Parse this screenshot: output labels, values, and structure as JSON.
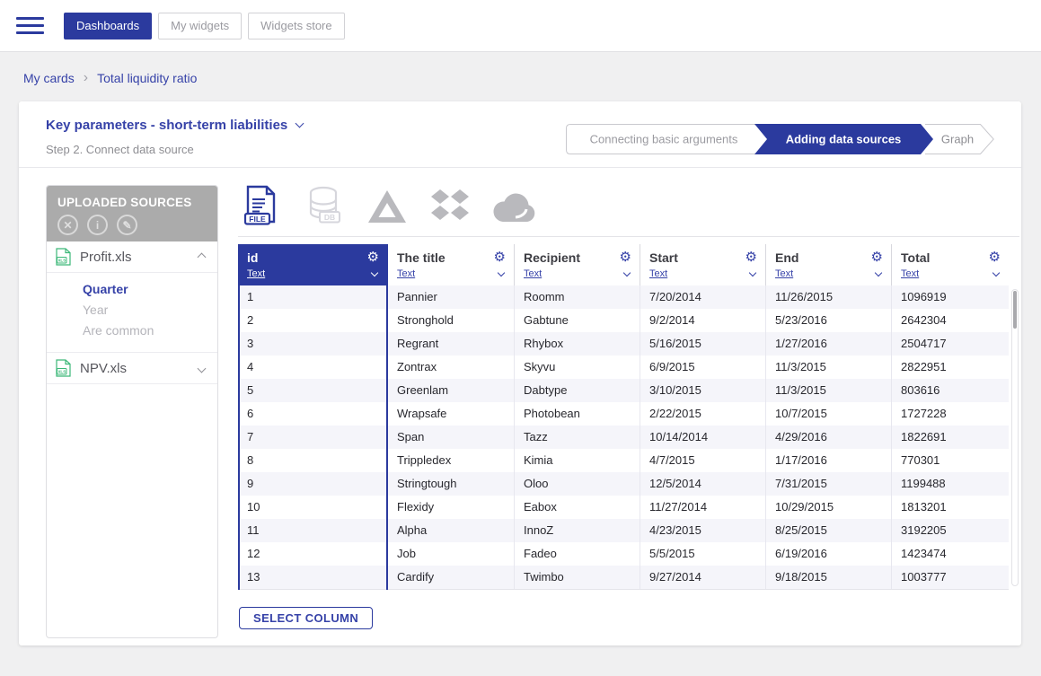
{
  "navbar": {
    "tabs": [
      {
        "label": "Dashboards",
        "active": true
      },
      {
        "label": "My widgets",
        "active": false
      },
      {
        "label": "Widgets store",
        "active": false
      }
    ]
  },
  "breadcrumb": {
    "items": [
      "My cards",
      "Total liquidity ratio"
    ]
  },
  "card": {
    "title": "Key parameters - short-term liabilities",
    "subtitle": "Step 2. Connect data source",
    "stepper": [
      {
        "label": "Connecting basic arguments",
        "state": "completed"
      },
      {
        "label": "Adding data sources",
        "state": "active"
      },
      {
        "label": "Graph",
        "state": "upcoming"
      }
    ]
  },
  "sources_panel": {
    "header": "UPLOADED SOURCES",
    "tools": [
      "remove",
      "info",
      "edit"
    ],
    "files": [
      {
        "name": "Profit.xls",
        "expanded": true,
        "sheets": [
          {
            "name": "Quarter",
            "selected": true
          },
          {
            "name": "Year",
            "selected": false
          },
          {
            "name": "Are common",
            "selected": false
          }
        ]
      },
      {
        "name": "NPV.xls",
        "expanded": false,
        "sheets": []
      }
    ]
  },
  "source_types": [
    {
      "name": "file",
      "label": "FILE",
      "active": true
    },
    {
      "name": "database",
      "label": "DB",
      "active": false
    },
    {
      "name": "google-drive",
      "active": false
    },
    {
      "name": "dropbox",
      "active": false
    },
    {
      "name": "cloud",
      "active": false
    }
  ],
  "table": {
    "columns": [
      {
        "name": "id",
        "type": "Text",
        "selected": true
      },
      {
        "name": "The title",
        "type": "Text",
        "selected": false
      },
      {
        "name": "Recipient",
        "type": "Text",
        "selected": false
      },
      {
        "name": "Start",
        "type": "Text",
        "selected": false
      },
      {
        "name": "End",
        "type": "Text",
        "selected": false
      },
      {
        "name": "Total",
        "type": "Text",
        "selected": false
      }
    ],
    "rows": [
      [
        "1",
        "Pannier",
        "Roomm",
        "7/20/2014",
        "11/26/2015",
        "1096919"
      ],
      [
        "2",
        "Stronghold",
        "Gabtune",
        "9/2/2014",
        "5/23/2016",
        "2642304"
      ],
      [
        "3",
        "Regrant",
        "Rhybox",
        "5/16/2015",
        "1/27/2016",
        "2504717"
      ],
      [
        "4",
        "Zontrax",
        "Skyvu",
        "6/9/2015",
        "11/3/2015",
        "2822951"
      ],
      [
        "5",
        "Greenlam",
        "Dabtype",
        "3/10/2015",
        "11/3/2015",
        "803616"
      ],
      [
        "6",
        "Wrapsafe",
        "Photobean",
        "2/22/2015",
        "10/7/2015",
        "1727228"
      ],
      [
        "7",
        "Span",
        "Tazz",
        "10/14/2014",
        "4/29/2016",
        "1822691"
      ],
      [
        "8",
        "Trippledex",
        "Kimia",
        "4/7/2015",
        "1/17/2016",
        "770301"
      ],
      [
        "9",
        "Stringtough",
        "Oloo",
        "12/5/2014",
        "7/31/2015",
        "1199488"
      ],
      [
        "10",
        "Flexidy",
        "Eabox",
        "11/27/2014",
        "10/29/2015",
        "1813201"
      ],
      [
        "11",
        "Alpha",
        "InnoZ",
        "4/23/2015",
        "8/25/2015",
        "3192205"
      ],
      [
        "12",
        "Job",
        "Fadeo",
        "5/5/2015",
        "6/19/2016",
        "1423474"
      ],
      [
        "13",
        "Cardify",
        "Twimbo",
        "9/27/2014",
        "9/18/2015",
        "1003777"
      ]
    ]
  },
  "actions": {
    "select_column": "SELECT COLUMN"
  },
  "icons": {
    "gear": "⚙",
    "close": "✕",
    "info": "i",
    "edit": "✎",
    "breadcrumb_separator": "›"
  },
  "colors": {
    "primary": "#2b3a9e",
    "link": "#3642a8",
    "page_bg": "#f0f0f1",
    "sidebar_header_bg": "#ababab",
    "muted": "#b4b4ba",
    "row_stripe": "#f5f5fa",
    "xls_green": "#3cb878",
    "icon_gray": "#b9b9bd",
    "icon_light": "#d6d6dc"
  }
}
